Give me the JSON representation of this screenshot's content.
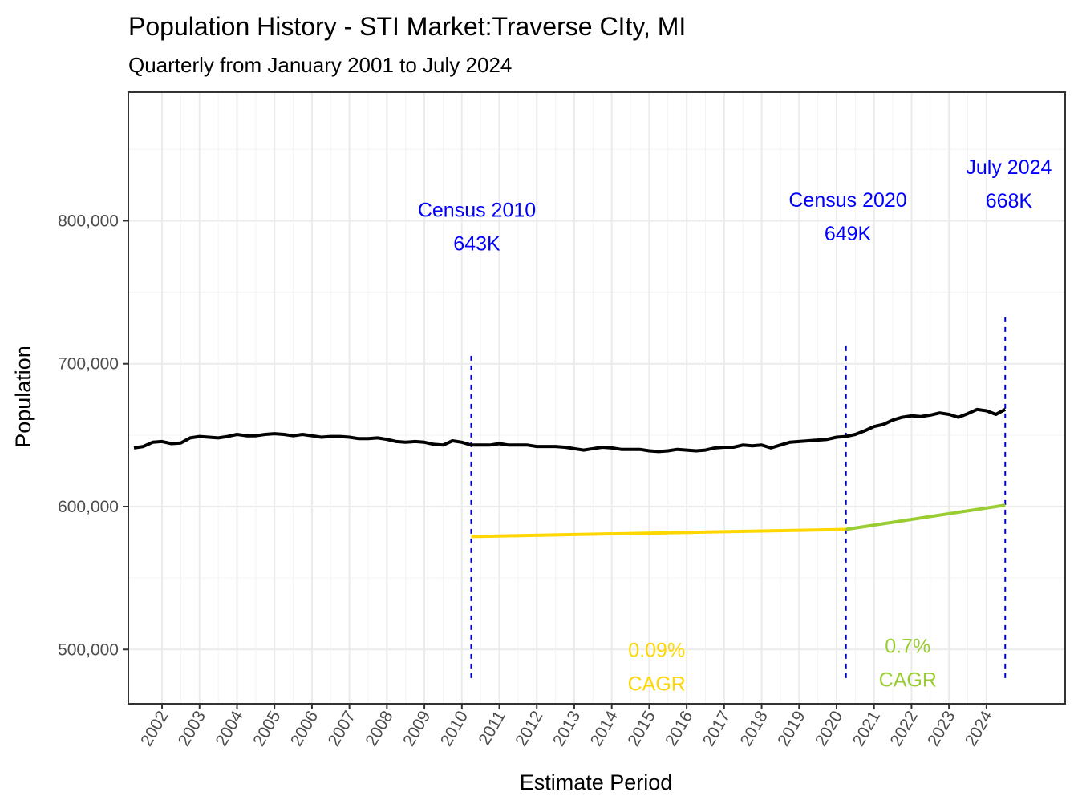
{
  "chart_data": {
    "type": "line",
    "title": "Population History - STI Market:Traverse CIty, MI",
    "subtitle": "Quarterly from January 2001 to July 2024",
    "xlabel": "Estimate Period",
    "ylabel": "Population",
    "xlim": [
      2001.1,
      2026.1
    ],
    "ylim": [
      462000,
      890000
    ],
    "grid": true,
    "x_ticks": [
      "2002",
      "2003",
      "2004",
      "2005",
      "2006",
      "2007",
      "2008",
      "2009",
      "2010",
      "2011",
      "2012",
      "2013",
      "2014",
      "2015",
      "2016",
      "2017",
      "2018",
      "2019",
      "2020",
      "2021",
      "2022",
      "2023",
      "2024"
    ],
    "y_ticks": [
      {
        "value": 500000,
        "label": "500,000"
      },
      {
        "value": 600000,
        "label": "600,000"
      },
      {
        "value": 700000,
        "label": "700,000"
      },
      {
        "value": 800000,
        "label": "800,000"
      }
    ],
    "series": [
      {
        "color": "#000000",
        "points": [
          [
            2001.25,
            641000
          ],
          [
            2001.5,
            642000
          ],
          [
            2001.75,
            645000
          ],
          [
            2002.0,
            645500
          ],
          [
            2002.25,
            644000
          ],
          [
            2002.5,
            644500
          ],
          [
            2002.75,
            648000
          ],
          [
            2003.0,
            649000
          ],
          [
            2003.25,
            648500
          ],
          [
            2003.5,
            648000
          ],
          [
            2003.75,
            649000
          ],
          [
            2004.0,
            650500
          ],
          [
            2004.25,
            649500
          ],
          [
            2004.5,
            649500
          ],
          [
            2004.75,
            650500
          ],
          [
            2005.0,
            651000
          ],
          [
            2005.25,
            650500
          ],
          [
            2005.5,
            649500
          ],
          [
            2005.75,
            650500
          ],
          [
            2006.0,
            649500
          ],
          [
            2006.25,
            648500
          ],
          [
            2006.5,
            649000
          ],
          [
            2006.75,
            649000
          ],
          [
            2007.0,
            648500
          ],
          [
            2007.25,
            647500
          ],
          [
            2007.5,
            647500
          ],
          [
            2007.75,
            648000
          ],
          [
            2008.0,
            647000
          ],
          [
            2008.25,
            645500
          ],
          [
            2008.5,
            645000
          ],
          [
            2008.75,
            645500
          ],
          [
            2009.0,
            645000
          ],
          [
            2009.25,
            643500
          ],
          [
            2009.5,
            643000
          ],
          [
            2009.75,
            646000
          ],
          [
            2010.0,
            645000
          ],
          [
            2010.25,
            643000
          ],
          [
            2010.5,
            643000
          ],
          [
            2010.75,
            643000
          ],
          [
            2011.0,
            644000
          ],
          [
            2011.25,
            643000
          ],
          [
            2011.5,
            643000
          ],
          [
            2011.75,
            643000
          ],
          [
            2012.0,
            642000
          ],
          [
            2012.25,
            642000
          ],
          [
            2012.5,
            642000
          ],
          [
            2012.75,
            641500
          ],
          [
            2013.0,
            640500
          ],
          [
            2013.25,
            639500
          ],
          [
            2013.5,
            640500
          ],
          [
            2013.75,
            641500
          ],
          [
            2014.0,
            641000
          ],
          [
            2014.25,
            640000
          ],
          [
            2014.5,
            640000
          ],
          [
            2014.75,
            640000
          ],
          [
            2015.0,
            639000
          ],
          [
            2015.25,
            638500
          ],
          [
            2015.5,
            639000
          ],
          [
            2015.75,
            640000
          ],
          [
            2016.0,
            639500
          ],
          [
            2016.25,
            639000
          ],
          [
            2016.5,
            639500
          ],
          [
            2016.75,
            641000
          ],
          [
            2017.0,
            641500
          ],
          [
            2017.25,
            641500
          ],
          [
            2017.5,
            643000
          ],
          [
            2017.75,
            642500
          ],
          [
            2018.0,
            643000
          ],
          [
            2018.25,
            641000
          ],
          [
            2018.5,
            643000
          ],
          [
            2018.75,
            645000
          ],
          [
            2019.0,
            645500
          ],
          [
            2019.25,
            646000
          ],
          [
            2019.5,
            646500
          ],
          [
            2019.75,
            647000
          ],
          [
            2020.0,
            648500
          ],
          [
            2020.25,
            649000
          ],
          [
            2020.5,
            650500
          ],
          [
            2020.75,
            653000
          ],
          [
            2021.0,
            656000
          ],
          [
            2021.25,
            657500
          ],
          [
            2021.5,
            660500
          ],
          [
            2021.75,
            662500
          ],
          [
            2022.0,
            663500
          ],
          [
            2022.25,
            663000
          ],
          [
            2022.5,
            664000
          ],
          [
            2022.75,
            665500
          ],
          [
            2023.0,
            664500
          ],
          [
            2023.25,
            662500
          ],
          [
            2023.5,
            665000
          ],
          [
            2023.75,
            668000
          ],
          [
            2024.0,
            667000
          ],
          [
            2024.25,
            664500
          ],
          [
            2024.5,
            668000
          ]
        ]
      },
      {
        "color": "#FFD700",
        "points": [
          [
            2010.25,
            579000
          ],
          [
            2020.25,
            584000
          ]
        ]
      },
      {
        "color": "#9ACD32",
        "points": [
          [
            2020.25,
            584000
          ],
          [
            2024.5,
            601000
          ]
        ]
      }
    ],
    "reference_lines": [
      {
        "x": 2010.25,
        "y_from": 480000,
        "y_to": 708000,
        "color": "#0000CD"
      },
      {
        "x": 2020.25,
        "y_from": 480000,
        "y_to": 713000,
        "color": "#0000CD"
      },
      {
        "x": 2024.5,
        "y_from": 480000,
        "y_to": 735000,
        "color": "#0000CD"
      }
    ],
    "annotations": [
      {
        "id": "census-2010",
        "x": 2010.4,
        "y": 796000,
        "lines": [
          "Census 2010",
          "643K"
        ],
        "color": "#0000FF"
      },
      {
        "id": "census-2020",
        "x": 2020.3,
        "y": 803000,
        "lines": [
          "Census 2020",
          "649K"
        ],
        "color": "#0000FF"
      },
      {
        "id": "july-2024",
        "x": 2024.6,
        "y": 826000,
        "lines": [
          "July 2024",
          "668K"
        ],
        "color": "#0000FF"
      },
      {
        "id": "cagr-2010-2020",
        "x": 2015.2,
        "y": 488000,
        "lines": [
          "0.09%",
          " CAGR"
        ],
        "color": "#FFD700"
      },
      {
        "id": "cagr-2020-2024",
        "x": 2021.9,
        "y": 491000,
        "lines": [
          "0.7%",
          "CAGR"
        ],
        "color": "#9ACD32"
      }
    ]
  }
}
